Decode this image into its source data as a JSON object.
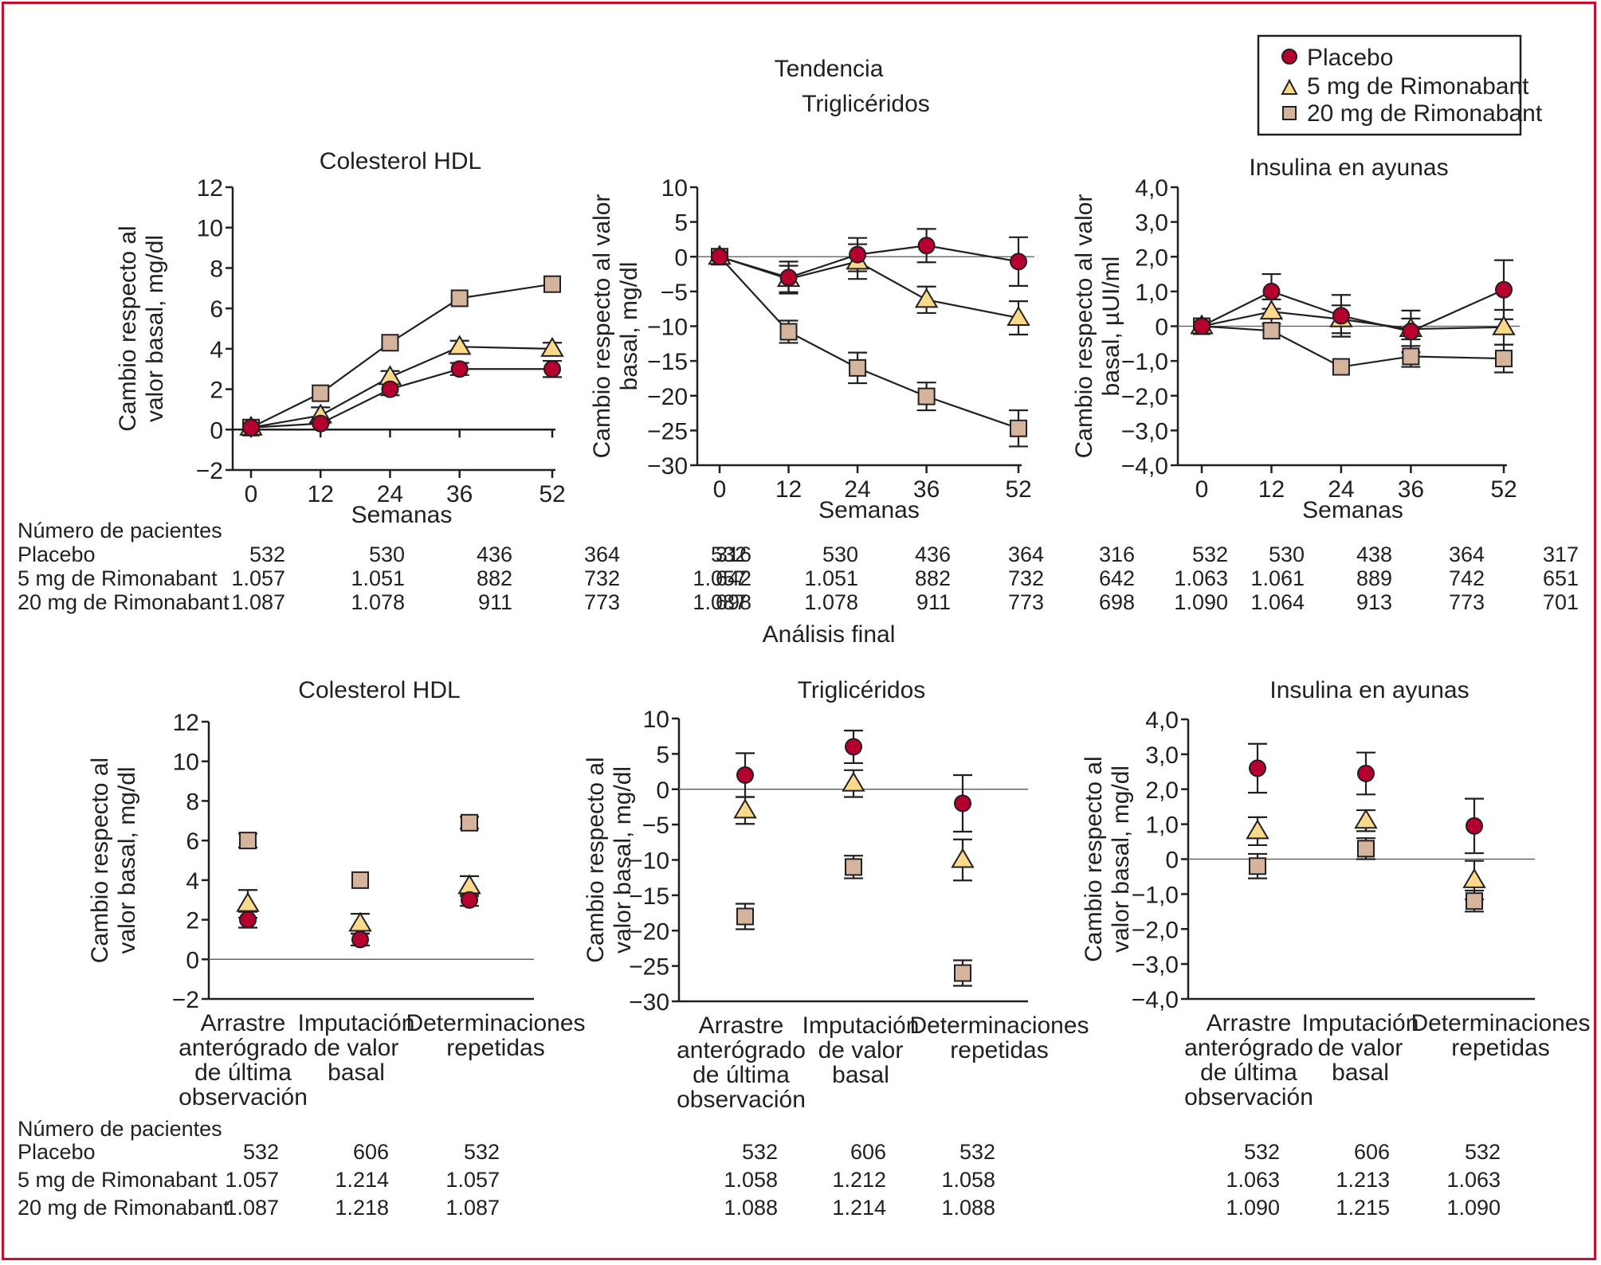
{
  "legend": {
    "items": [
      {
        "name": "Placebo",
        "marker": "circle",
        "color": "#b5002f"
      },
      {
        "name": "5 mg de Rimonabant",
        "marker": "triangle",
        "color": "#fbd98a"
      },
      {
        "name": "20 mg de Rimonabant",
        "marker": "square",
        "color": "#d5b49e"
      }
    ]
  },
  "frame_color": "#c8102e",
  "header": {
    "tendencia": "Tendencia",
    "analisis_final": "Análisis final"
  },
  "tables_label": "Número de pacientes",
  "chart_data": [
    {
      "id": "top-hdl",
      "type": "line",
      "title": "Colesterol HDL",
      "xlabel": "Semanas",
      "ylabel": [
        "Cambio respecto al",
        "valor basal, mg/dl"
      ],
      "x": [
        0,
        12,
        24,
        36,
        52
      ],
      "xticks": [
        "0",
        "12",
        "24",
        "36",
        "52"
      ],
      "ylim": [
        -2,
        12
      ],
      "yticks": [
        -2,
        0,
        2,
        4,
        6,
        8,
        10,
        12
      ],
      "ytick_labels": [
        "−2",
        "0",
        "2",
        "4",
        "6",
        "8",
        "10",
        "12"
      ],
      "zero_line": false,
      "series": [
        {
          "name": "Placebo",
          "values": [
            0.1,
            0.3,
            2.0,
            3.0,
            3.0
          ],
          "err": [
            0,
            0,
            0.3,
            0.3,
            0.4
          ]
        },
        {
          "name": "5 mg de Rimonabant",
          "values": [
            0.1,
            0.7,
            2.6,
            4.1,
            4.0
          ],
          "err": [
            0,
            0.4,
            0.3,
            0.3,
            0.3
          ]
        },
        {
          "name": "20 mg de Rimonabant",
          "values": [
            0.1,
            1.8,
            4.3,
            6.5,
            7.2
          ],
          "err": [
            0,
            0,
            0,
            0,
            0
          ]
        }
      ],
      "patients": {
        "Placebo": [
          "532",
          "530",
          "436",
          "364",
          "316"
        ],
        "5 mg de Rimonabant": [
          "1.057",
          "1.051",
          "882",
          "732",
          "642"
        ],
        "20 mg de Rimonabant": [
          "1.087",
          "1.078",
          "911",
          "773",
          "698"
        ]
      }
    },
    {
      "id": "top-tg",
      "type": "line",
      "title": "Triglicéridos",
      "xlabel": "Semanas",
      "ylabel": [
        "Cambio respecto al valor",
        "basal, mg/dl"
      ],
      "x": [
        0,
        12,
        24,
        36,
        52
      ],
      "xticks": [
        "0",
        "12",
        "24",
        "36",
        "52"
      ],
      "ylim": [
        -30,
        10
      ],
      "yticks": [
        -30,
        -25,
        -20,
        -15,
        -10,
        -5,
        0,
        5,
        10
      ],
      "ytick_labels": [
        "−30",
        "−25",
        "−20",
        "−15",
        "−10",
        "−5",
        "0",
        "5",
        "10"
      ],
      "zero_line": true,
      "series": [
        {
          "name": "Placebo",
          "values": [
            0,
            -3.0,
            0.3,
            1.6,
            -0.7
          ],
          "err": [
            0,
            2.3,
            2.4,
            2.4,
            3.5
          ]
        },
        {
          "name": "5 mg de Rimonabant",
          "values": [
            0,
            -3.2,
            -0.7,
            -6.2,
            -8.8
          ],
          "err": [
            0,
            1.9,
            2.5,
            1.9,
            2.4
          ]
        },
        {
          "name": "20 mg de Rimonabant",
          "values": [
            0,
            -10.8,
            -16.0,
            -20.1,
            -24.7
          ],
          "err": [
            0,
            1.6,
            2.2,
            2.0,
            2.6
          ]
        }
      ],
      "patients": {
        "Placebo": [
          "532",
          "530",
          "436",
          "364",
          "316"
        ],
        "5 mg de Rimonabant": [
          "1.057",
          "1.051",
          "882",
          "732",
          "642"
        ],
        "20 mg de Rimonabant": [
          "1.087",
          "1.078",
          "911",
          "773",
          "698"
        ]
      }
    },
    {
      "id": "top-ins",
      "type": "line",
      "title": "Insulina en ayunas",
      "xlabel": "Semanas",
      "ylabel": [
        "Cambio respecto al valor",
        "basal, µUI/ml"
      ],
      "x": [
        0,
        12,
        24,
        36,
        52
      ],
      "xticks": [
        "0",
        "12",
        "24",
        "36",
        "52"
      ],
      "ylim": [
        -4,
        4
      ],
      "yticks": [
        -4,
        -3,
        -2,
        -1,
        0,
        1,
        2,
        3,
        4
      ],
      "ytick_labels": [
        "−4,0",
        "−3,0",
        "−2,0",
        "−1,0",
        "0",
        "1,0",
        "2,0",
        "3,0",
        "4,0"
      ],
      "zero_line": true,
      "series": [
        {
          "name": "Placebo",
          "values": [
            0,
            1.0,
            0.3,
            -0.15,
            1.05
          ],
          "err": [
            0,
            0.5,
            0.6,
            0.6,
            0.85
          ]
        },
        {
          "name": "5 mg de Rimonabant",
          "values": [
            0,
            0.42,
            0.2,
            -0.08,
            -0.03
          ],
          "err": [
            0,
            0.35,
            0.4,
            0.3,
            0.5
          ]
        },
        {
          "name": "20 mg de Rimonabant",
          "values": [
            0,
            -0.13,
            -1.17,
            -0.87,
            -0.93
          ],
          "err": [
            0,
            0,
            0,
            0.3,
            0.4
          ]
        }
      ],
      "patients": {
        "Placebo": [
          "532",
          "530",
          "438",
          "364",
          "317"
        ],
        "5 mg de Rimonabant": [
          "1.063",
          "1.061",
          "889",
          "742",
          "651"
        ],
        "20 mg de Rimonabant": [
          "1.090",
          "1.064",
          "913",
          "773",
          "701"
        ]
      }
    },
    {
      "id": "bot-hdl",
      "type": "scatter",
      "title": "Colesterol HDL",
      "ylabel": [
        "Cambio respecto al",
        "valor basal, mg/dl"
      ],
      "categories": [
        [
          "Arrastre",
          "anterógrado",
          "de última",
          "observación"
        ],
        [
          "Imputación",
          "de valor",
          "basal"
        ],
        [
          "Determinaciones",
          "repetidas"
        ]
      ],
      "ylim": [
        -2,
        12
      ],
      "yticks": [
        -2,
        0,
        2,
        4,
        6,
        8,
        10,
        12
      ],
      "ytick_labels": [
        "−2",
        "0",
        "2",
        "4",
        "6",
        "8",
        "10",
        "12"
      ],
      "zero_line": true,
      "series": [
        {
          "name": "Placebo",
          "values": [
            2.0,
            1.0,
            3.0
          ],
          "err": [
            0.4,
            0.3,
            0.3
          ]
        },
        {
          "name": "5 mg de Rimonabant",
          "values": [
            2.8,
            1.8,
            3.7
          ],
          "err": [
            0.7,
            0.5,
            0.5
          ]
        },
        {
          "name": "20 mg de Rimonabant",
          "values": [
            6.0,
            4.0,
            6.9
          ],
          "err": [
            0.35,
            0,
            0.3
          ]
        }
      ],
      "patients": {
        "Placebo": [
          "532",
          "606",
          "532"
        ],
        "5 mg de Rimonabant": [
          "1.057",
          "1.214",
          "1.057"
        ],
        "20 mg de Rimonabant": [
          "1.087",
          "1.218",
          "1.087"
        ]
      }
    },
    {
      "id": "bot-tg",
      "type": "scatter",
      "title": "Triglicéridos",
      "ylabel": [
        "Cambio respecto al",
        "valor basal, mg/dl"
      ],
      "categories": [
        [
          "Arrastre",
          "anterógrado",
          "de última",
          "observación"
        ],
        [
          "Imputación",
          "de valor",
          "basal"
        ],
        [
          "Determinaciones",
          "repetidas"
        ]
      ],
      "ylim": [
        -30,
        10
      ],
      "yticks": [
        -30,
        -25,
        -20,
        -15,
        -10,
        -5,
        0,
        5,
        10
      ],
      "ytick_labels": [
        "−30",
        "−25",
        "−20",
        "−15",
        "−10",
        "−5",
        "0",
        "5",
        "10"
      ],
      "zero_line": true,
      "series": [
        {
          "name": "Placebo",
          "values": [
            2.0,
            6.0,
            -2.0
          ],
          "err": [
            3.1,
            2.3,
            4.0
          ]
        },
        {
          "name": "5 mg de Rimonabant",
          "values": [
            -3.0,
            0.8,
            -10.0
          ],
          "err": [
            1.9,
            1.9,
            2.9
          ]
        },
        {
          "name": "20 mg de Rimonabant",
          "values": [
            -18.0,
            -11.0,
            -26.0
          ],
          "err": [
            1.8,
            1.6,
            1.8
          ]
        }
      ],
      "patients": {
        "Placebo": [
          "532",
          "606",
          "532"
        ],
        "5 mg de Rimonabant": [
          "1.058",
          "1.212",
          "1.058"
        ],
        "20 mg de Rimonabant": [
          "1.088",
          "1.214",
          "1.088"
        ]
      }
    },
    {
      "id": "bot-ins",
      "type": "scatter",
      "title": "Insulina en ayunas",
      "ylabel": [
        "Cambio respecto al",
        "valor basal, mg/dl"
      ],
      "categories": [
        [
          "Arrastre",
          "anterógrado",
          "de última",
          "observación"
        ],
        [
          "Imputación",
          "de valor",
          "basal"
        ],
        [
          "Determinaciones",
          "repetidas"
        ]
      ],
      "ylim": [
        -4,
        4
      ],
      "yticks": [
        -4,
        -3,
        -2,
        -1,
        0,
        1,
        2,
        3,
        4
      ],
      "ytick_labels": [
        "−4,0",
        "−3,0",
        "−2,0",
        "−1,0",
        "0",
        "1,0",
        "2,0",
        "3,0",
        "4,0"
      ],
      "zero_line": true,
      "series": [
        {
          "name": "Placebo",
          "values": [
            2.6,
            2.45,
            0.95
          ],
          "err": [
            0.7,
            0.6,
            0.78
          ]
        },
        {
          "name": "5 mg de Rimonabant",
          "values": [
            0.8,
            1.1,
            -0.6
          ],
          "err": [
            0.4,
            0.3,
            0.55
          ]
        },
        {
          "name": "20 mg de Rimonabant",
          "values": [
            -0.2,
            0.3,
            -1.2
          ],
          "err": [
            0.35,
            0.3,
            0.3
          ]
        }
      ],
      "patients": {
        "Placebo": [
          "532",
          "606",
          "532"
        ],
        "5 mg de Rimonabant": [
          "1.063",
          "1.213",
          "1.063"
        ],
        "20 mg de Rimonabant": [
          "1.090",
          "1.215",
          "1.090"
        ]
      }
    }
  ]
}
